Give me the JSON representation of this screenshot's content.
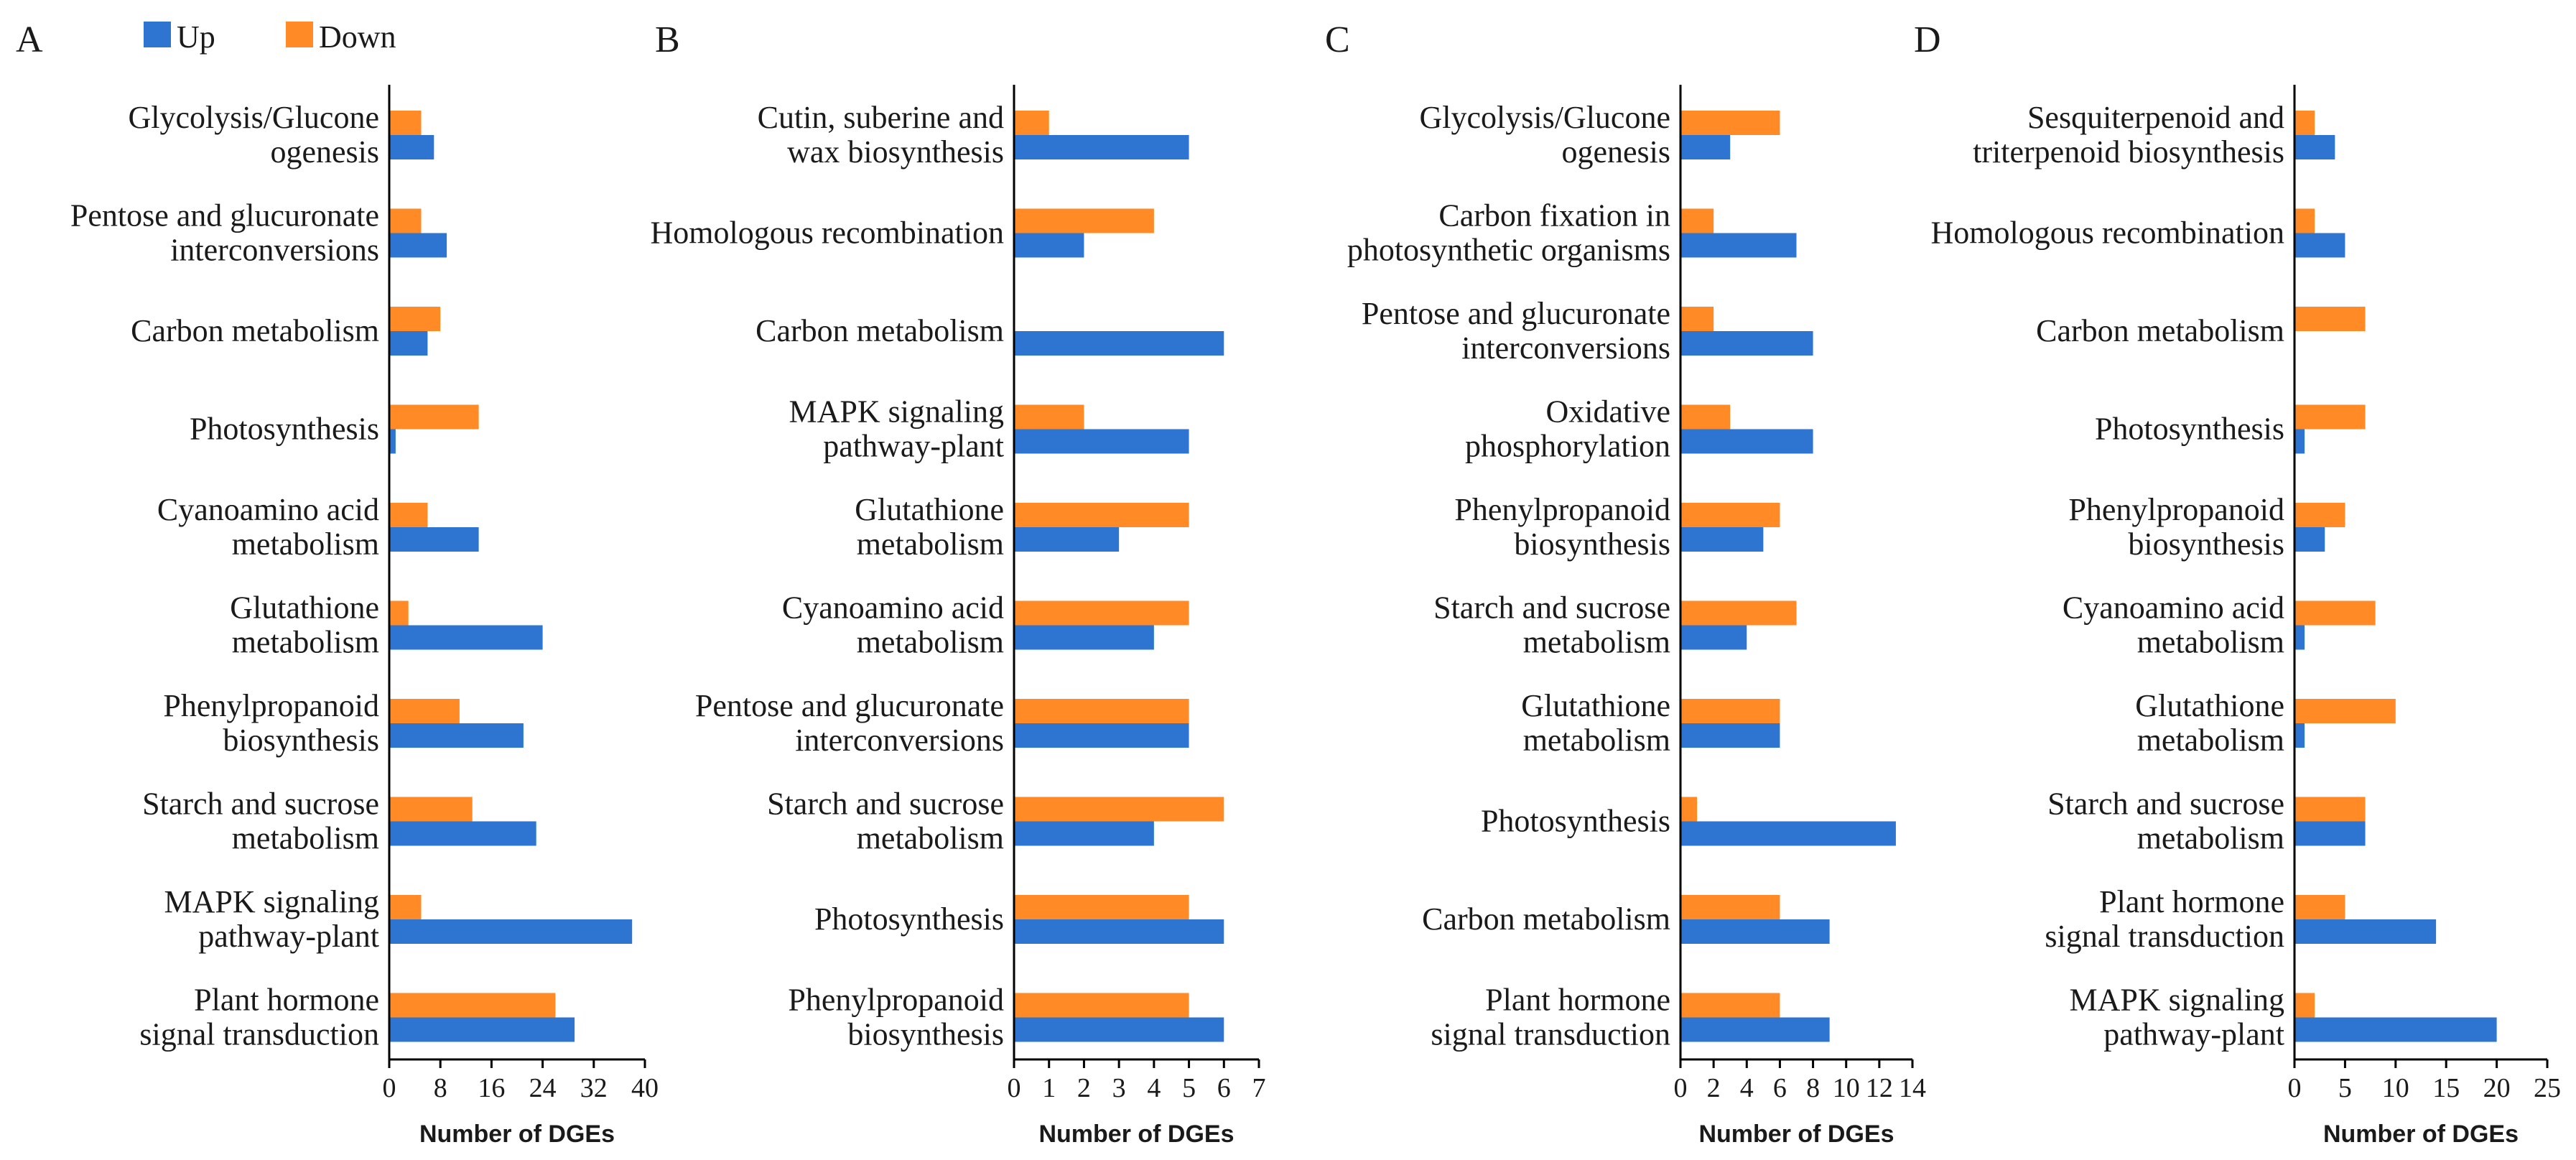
{
  "legend": {
    "up_label": "Up",
    "down_label": "Down"
  },
  "colors": {
    "up": "#2E75D2",
    "down": "#FF8A26",
    "axis": "#000000"
  },
  "chart_data": [
    {
      "type": "bar",
      "orientation": "horizontal",
      "panel": "A",
      "xlabel": "Number of DGEs",
      "xlim": [
        0,
        40
      ],
      "xticks": [
        0,
        8,
        16,
        24,
        32,
        40
      ],
      "categories": [
        [
          "Glycolysis/Glucone",
          "ogenesis"
        ],
        [
          "Pentose and glucuronate",
          "interconversions"
        ],
        [
          "Carbon metabolism"
        ],
        [
          "Photosynthesis"
        ],
        [
          "Cyanoamino acid",
          "metabolism"
        ],
        [
          "Glutathione",
          "metabolism"
        ],
        [
          "Phenylpropanoid",
          "biosynthesis"
        ],
        [
          "Starch and sucrose",
          "metabolism"
        ],
        [
          "MAPK signaling",
          "pathway-plant"
        ],
        [
          "Plant hormone",
          "signal transduction"
        ]
      ],
      "series": [
        {
          "name": "Down",
          "values": [
            5,
            5,
            8,
            14,
            6,
            3,
            11,
            13,
            5,
            26
          ]
        },
        {
          "name": "Up",
          "values": [
            7,
            9,
            6,
            1,
            14,
            24,
            21,
            23,
            38,
            29
          ]
        }
      ]
    },
    {
      "type": "bar",
      "orientation": "horizontal",
      "panel": "B",
      "xlabel": "Number of DGEs",
      "xlim": [
        0,
        7
      ],
      "xticks": [
        0,
        1,
        2,
        3,
        4,
        5,
        6,
        7
      ],
      "categories": [
        [
          "Cutin, suberine and",
          "wax biosynthesis"
        ],
        [
          "Homologous recombination"
        ],
        [
          "Carbon metabolism"
        ],
        [
          "MAPK signaling",
          "pathway-plant"
        ],
        [
          "Glutathione",
          "metabolism"
        ],
        [
          "Cyanoamino acid",
          "metabolism"
        ],
        [
          "Pentose and glucuronate",
          "interconversions"
        ],
        [
          "Starch and sucrose",
          "metabolism"
        ],
        [
          "Photosynthesis"
        ],
        [
          "Phenylpropanoid",
          "biosynthesis"
        ]
      ],
      "series": [
        {
          "name": "Down",
          "values": [
            1,
            4,
            0,
            2,
            5,
            5,
            5,
            6,
            5,
            5
          ]
        },
        {
          "name": "Up",
          "values": [
            5,
            2,
            6,
            5,
            3,
            4,
            5,
            4,
            6,
            6
          ]
        }
      ]
    },
    {
      "type": "bar",
      "orientation": "horizontal",
      "panel": "C",
      "xlabel": "Number of DGEs",
      "xlim": [
        0,
        14
      ],
      "xticks": [
        0,
        2,
        4,
        6,
        8,
        10,
        12,
        14
      ],
      "categories": [
        [
          "Glycolysis/Glucone",
          "ogenesis"
        ],
        [
          "Carbon fixation in",
          "photosynthetic organisms"
        ],
        [
          "Pentose and glucuronate",
          "interconversions"
        ],
        [
          "Oxidative",
          "phosphorylation"
        ],
        [
          "Phenylpropanoid",
          "biosynthesis"
        ],
        [
          "Starch and sucrose",
          "metabolism"
        ],
        [
          "Glutathione",
          "metabolism"
        ],
        [
          "Photosynthesis"
        ],
        [
          "Carbon metabolism"
        ],
        [
          "Plant hormone",
          "signal transduction"
        ]
      ],
      "series": [
        {
          "name": "Down",
          "values": [
            6,
            2,
            2,
            3,
            6,
            7,
            6,
            1,
            6,
            6
          ]
        },
        {
          "name": "Up",
          "values": [
            3,
            7,
            8,
            8,
            5,
            4,
            6,
            13,
            9,
            9
          ]
        }
      ]
    },
    {
      "type": "bar",
      "orientation": "horizontal",
      "panel": "D",
      "xlabel": "Number of DGEs",
      "xlim": [
        0,
        25
      ],
      "xticks": [
        0,
        5,
        10,
        15,
        20,
        25
      ],
      "categories": [
        [
          "Sesquiterpenoid and",
          "triterpenoid biosynthesis"
        ],
        [
          "Homologous recombination"
        ],
        [
          "Carbon metabolism"
        ],
        [
          "Photosynthesis"
        ],
        [
          "Phenylpropanoid",
          "biosynthesis"
        ],
        [
          "Cyanoamino acid",
          "metabolism"
        ],
        [
          "Glutathione",
          "metabolism"
        ],
        [
          "Starch and sucrose",
          "metabolism"
        ],
        [
          "Plant hormone",
          "signal transduction"
        ],
        [
          "MAPK signaling",
          "pathway-plant"
        ]
      ],
      "series": [
        {
          "name": "Down",
          "values": [
            2,
            2,
            7,
            7,
            5,
            8,
            10,
            7,
            5,
            2
          ]
        },
        {
          "name": "Up",
          "values": [
            4,
            5,
            0,
            1,
            3,
            1,
            1,
            7,
            14,
            20
          ]
        }
      ]
    }
  ]
}
